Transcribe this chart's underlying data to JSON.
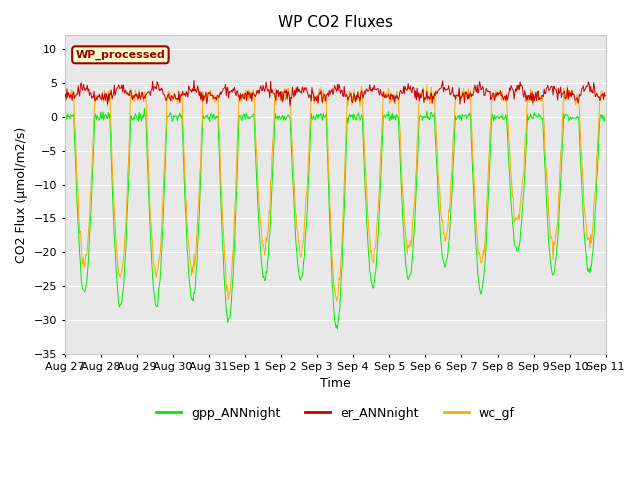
{
  "title": "WP CO2 Fluxes",
  "xlabel": "Time",
  "ylabel": "CO2 Flux (μmol/m2/s)",
  "ylim": [
    -35,
    12
  ],
  "yticks": [
    -35,
    -30,
    -25,
    -20,
    -15,
    -10,
    -5,
    0,
    5,
    10
  ],
  "background_color": "#ffffff",
  "plot_bg_color": "#e8e8e8",
  "grid_color": "#ffffff",
  "annotation_text": "WP_processed",
  "annotation_bg": "#ffffcc",
  "annotation_border": "#990000",
  "annotation_text_color": "#990000",
  "legend_items": [
    "gpp_ANNnight",
    "er_ANNnight",
    "wc_gf"
  ],
  "legend_colors": [
    "#00ee00",
    "#cc0000",
    "#ffaa00"
  ],
  "line_colors": {
    "gpp": "#00ee00",
    "er": "#cc0000",
    "wc": "#ffaa00"
  },
  "n_days": 15,
  "tick_labels": [
    "Aug 27",
    "Aug 28",
    "Aug 29",
    "Aug 30",
    "Aug 31",
    "Sep 1",
    "Sep 2",
    "Sep 3",
    "Sep 4",
    "Sep 5",
    "Sep 6",
    "Sep 7",
    "Sep 8",
    "Sep 9",
    "Sep 10",
    "Sep 11"
  ]
}
